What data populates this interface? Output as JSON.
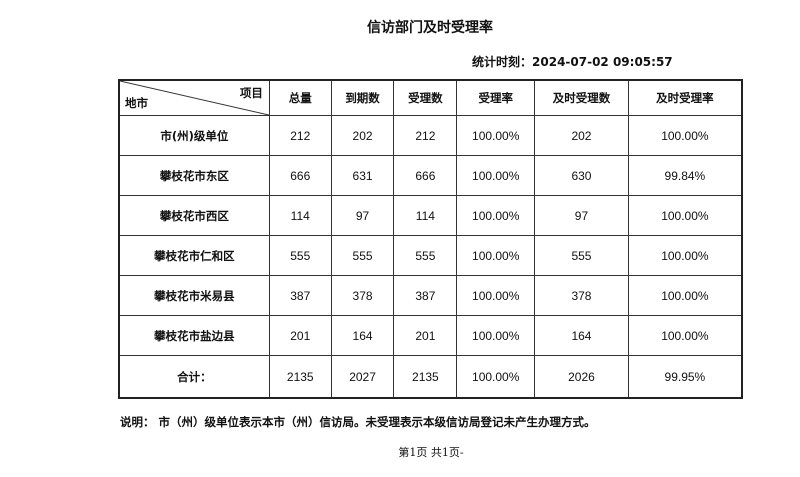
{
  "title": "信访部门及时受理率",
  "stat_time_label": "统计时刻：",
  "stat_time": "2024-07-02 09:05:57",
  "table": {
    "corner_top": "项目",
    "corner_bottom": "地市",
    "columns": [
      "总量",
      "到期数",
      "受理数",
      "受理率",
      "及时受理数",
      "及时受理率"
    ],
    "rows": [
      [
        "市(州)级单位",
        "212",
        "202",
        "212",
        "100.00%",
        "202",
        "100.00%"
      ],
      [
        "攀枝花市东区",
        "666",
        "631",
        "666",
        "100.00%",
        "630",
        "99.84%"
      ],
      [
        "攀枝花市西区",
        "114",
        "97",
        "114",
        "100.00%",
        "97",
        "100.00%"
      ],
      [
        "攀枝花市仁和区",
        "555",
        "555",
        "555",
        "100.00%",
        "555",
        "100.00%"
      ],
      [
        "攀枝花市米易县",
        "387",
        "378",
        "387",
        "100.00%",
        "378",
        "100.00%"
      ],
      [
        "攀枝花市盐边县",
        "201",
        "164",
        "201",
        "100.00%",
        "164",
        "100.00%"
      ]
    ],
    "total": [
      "合计：",
      "2135",
      "2027",
      "2135",
      "100.00%",
      "2026",
      "99.95%"
    ]
  },
  "note": "说明： 市（州）级单位表示本市（州）信访局。未受理表示本级信访局登记未产生办理方式。",
  "pager": "第1页  共1页-"
}
